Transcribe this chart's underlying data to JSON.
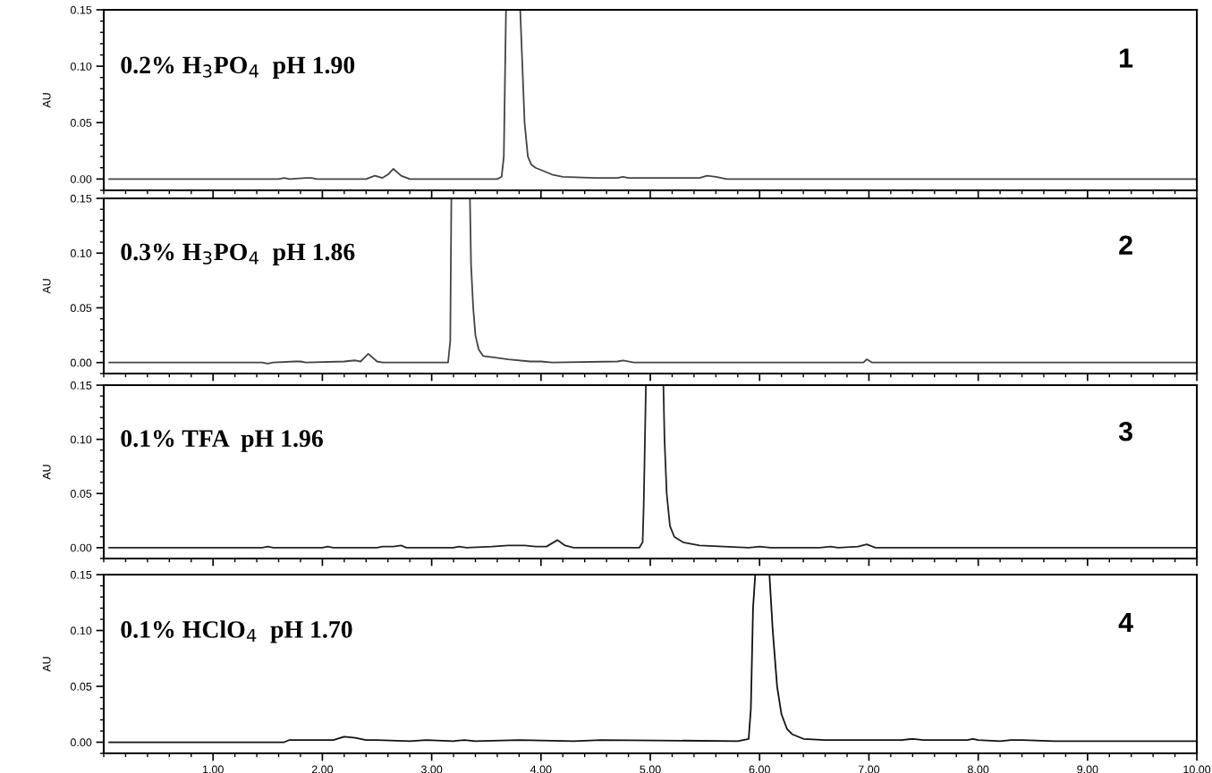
{
  "chart_data": [
    {
      "type": "line",
      "ylabel": "AU",
      "annotations": [
        "0.2% H$_{3}$PO$_{4}$  pH 1.90",
        "1"
      ],
      "xlim": [
        0,
        10
      ],
      "ylim": [
        -0.01,
        0.15
      ],
      "yticks": [
        {
          "value": 0,
          "label": "0.00"
        },
        {
          "value": 0.05,
          "label": "0.05"
        },
        {
          "value": 0.1,
          "label": "0.10"
        },
        {
          "value": 0.15,
          "label": "0.15"
        }
      ],
      "xticks": [
        {
          "value": 1,
          "label": null
        },
        {
          "value": 2,
          "label": null
        },
        {
          "value": 3,
          "label": null
        },
        {
          "value": 4,
          "label": null
        },
        {
          "value": 5,
          "label": null
        },
        {
          "value": 6,
          "label": null
        },
        {
          "value": 7,
          "label": null
        },
        {
          "value": 8,
          "label": null
        },
        {
          "value": 9,
          "label": null
        },
        {
          "value": 10,
          "label": null
        }
      ],
      "tick_labels": "y",
      "grid": false,
      "legend": false,
      "series": [
        {
          "color": "#444444",
          "x": [
            0.05,
            1.6,
            1.65,
            1.7,
            1.85,
            1.9,
            1.95,
            2.4,
            2.48,
            2.55,
            2.6,
            2.65,
            2.72,
            2.8,
            3.6,
            3.64,
            3.66,
            3.68,
            3.7,
            3.75,
            3.81,
            3.83,
            3.85,
            3.88,
            3.91,
            3.95,
            4.0,
            4.05,
            4.1,
            4.2,
            4.5,
            4.7,
            4.75,
            4.8,
            5.45,
            5.52,
            5.6,
            5.7,
            10
          ],
          "values": [
            0,
            0,
            0.001,
            0,
            0.001,
            0.001,
            0,
            0,
            0.003,
            0.001,
            0.004,
            0.009,
            0.003,
            0,
            0,
            0.002,
            0.02,
            0.15,
            0.15,
            null,
            0.15,
            0.1,
            0.05,
            0.02,
            0.013,
            0.01,
            0.008,
            0.006,
            0.004,
            0.002,
            0.001,
            0.001,
            0.002,
            0.001,
            0.001,
            0.003,
            0.002,
            0,
            0
          ]
        }
      ]
    },
    {
      "type": "line",
      "ylabel": "AU",
      "annotations": [
        "0.3% H$_{3}$PO$_{4}$  pH 1.86",
        "2"
      ],
      "xlim": [
        0,
        10
      ],
      "ylim": [
        -0.01,
        0.15
      ],
      "yticks": [
        {
          "value": 0,
          "label": "0.00"
        },
        {
          "value": 0.05,
          "label": "0.05"
        },
        {
          "value": 0.1,
          "label": "0.10"
        },
        {
          "value": 0.15,
          "label": "0.15"
        }
      ],
      "xticks": [
        {
          "value": 1,
          "label": null
        },
        {
          "value": 2,
          "label": null
        },
        {
          "value": 3,
          "label": null
        },
        {
          "value": 4,
          "label": null
        },
        {
          "value": 5,
          "label": null
        },
        {
          "value": 6,
          "label": null
        },
        {
          "value": 7,
          "label": null
        },
        {
          "value": 8,
          "label": null
        },
        {
          "value": 9,
          "label": null
        },
        {
          "value": 10,
          "label": null
        }
      ],
      "tick_labels": "y",
      "grid": false,
      "legend": false,
      "series": [
        {
          "color": "#444444",
          "x": [
            0.05,
            1.45,
            1.5,
            1.55,
            1.75,
            1.8,
            1.85,
            2.2,
            2.3,
            2.35,
            2.42,
            2.5,
            2.55,
            3.15,
            3.17,
            3.18,
            3.2,
            3.27,
            3.35,
            3.36,
            3.38,
            3.4,
            3.43,
            3.47,
            3.55,
            3.7,
            3.9,
            4.0,
            4.1,
            4.7,
            4.75,
            4.85,
            6.95,
            6.98,
            7.03,
            10
          ],
          "values": [
            0,
            0,
            -0.001,
            0,
            0.001,
            0.001,
            0,
            0.001,
            0.002,
            0.001,
            0.008,
            0.001,
            0,
            0,
            0.02,
            0.15,
            0.15,
            null,
            0.15,
            0.09,
            0.05,
            0.025,
            0.012,
            0.006,
            0.005,
            0.003,
            0.001,
            0.001,
            0,
            0.001,
            0.002,
            0,
            0,
            0.003,
            0,
            0
          ]
        }
      ]
    },
    {
      "type": "line",
      "ylabel": "AU",
      "annotations": [
        "0.1% TFA  pH 1.96",
        "3"
      ],
      "xlim": [
        0,
        10
      ],
      "ylim": [
        -0.01,
        0.15
      ],
      "yticks": [
        {
          "value": 0,
          "label": "0.00"
        },
        {
          "value": 0.05,
          "label": "0.05"
        },
        {
          "value": 0.1,
          "label": "0.10"
        },
        {
          "value": 0.15,
          "label": "0.15"
        }
      ],
      "xticks": [
        {
          "value": 1,
          "label": null
        },
        {
          "value": 2,
          "label": null
        },
        {
          "value": 3,
          "label": null
        },
        {
          "value": 4,
          "label": null
        },
        {
          "value": 5,
          "label": null
        },
        {
          "value": 6,
          "label": null
        },
        {
          "value": 7,
          "label": null
        },
        {
          "value": 8,
          "label": null
        },
        {
          "value": 9,
          "label": null
        },
        {
          "value": 10,
          "label": null
        }
      ],
      "tick_labels": "y",
      "grid": false,
      "legend": false,
      "series": [
        {
          "color": "#222222",
          "x": [
            0.05,
            1.45,
            1.5,
            1.55,
            2.0,
            2.05,
            2.1,
            2.5,
            2.55,
            2.65,
            2.72,
            2.77,
            3.2,
            3.25,
            3.32,
            3.55,
            3.7,
            3.85,
            3.95,
            4.05,
            4.15,
            4.22,
            4.3,
            4.9,
            4.93,
            4.94,
            4.96,
            5.04,
            5.12,
            5.13,
            5.15,
            5.18,
            5.22,
            5.3,
            5.45,
            5.9,
            6.0,
            6.1,
            6.55,
            6.65,
            6.72,
            6.9,
            6.98,
            7.06,
            10
          ],
          "values": [
            0,
            0,
            0.001,
            0,
            0,
            0.001,
            0,
            0,
            0.001,
            0.001,
            0.002,
            0,
            0,
            0.001,
            0,
            0.001,
            0.002,
            0.002,
            0.001,
            0.001,
            0.007,
            0.002,
            0,
            0,
            0.005,
            0.04,
            0.15,
            null,
            0.15,
            0.1,
            0.05,
            0.02,
            0.01,
            0.005,
            0.002,
            0,
            0.001,
            0,
            0,
            0.001,
            0,
            0.001,
            0.003,
            0,
            0
          ]
        }
      ]
    },
    {
      "type": "line",
      "ylabel": "AU",
      "annotations": [
        "0.1% HClO$_{4}$  pH 1.70",
        "4"
      ],
      "xlim": [
        0,
        10
      ],
      "ylim": [
        -0.01,
        0.15
      ],
      "yticks": [
        {
          "value": 0,
          "label": "0.00"
        },
        {
          "value": 0.05,
          "label": "0.05"
        },
        {
          "value": 0.1,
          "label": "0.10"
        },
        {
          "value": 0.15,
          "label": "0.15"
        }
      ],
      "xticks": [
        {
          "value": 1,
          "label": "1.00"
        },
        {
          "value": 2,
          "label": "2.00"
        },
        {
          "value": 3,
          "label": "3.00"
        },
        {
          "value": 4,
          "label": "4.00"
        },
        {
          "value": 5,
          "label": "5.00"
        },
        {
          "value": 6,
          "label": "6.00"
        },
        {
          "value": 7,
          "label": "7.00"
        },
        {
          "value": 8,
          "label": "8.00"
        },
        {
          "value": 9,
          "label": "9.00"
        },
        {
          "value": 10,
          "label": "10.00"
        }
      ],
      "grid": false,
      "legend": false,
      "series": [
        {
          "color": "#111111",
          "x": [
            0.05,
            1.65,
            1.7,
            2.1,
            2.2,
            2.3,
            2.4,
            2.5,
            2.8,
            2.95,
            3.2,
            3.3,
            3.4,
            3.8,
            4.3,
            4.55,
            5.8,
            5.9,
            5.92,
            5.94,
            5.96,
            6.03,
            6.09,
            6.12,
            6.16,
            6.2,
            6.25,
            6.3,
            6.4,
            6.6,
            7.3,
            7.4,
            7.5,
            7.9,
            7.95,
            8.0,
            8.2,
            8.3,
            8.4,
            8.7,
            10
          ],
          "values": [
            0,
            0,
            0.002,
            0.002,
            0.005,
            0.004,
            0.002,
            0.002,
            0.001,
            0.002,
            0.001,
            0.002,
            0.001,
            0.002,
            0.001,
            0.002,
            0.001,
            0.003,
            0.03,
            0.12,
            0.15,
            null,
            0.15,
            0.1,
            0.05,
            0.025,
            0.012,
            0.007,
            0.003,
            0.002,
            0.002,
            0.003,
            0.002,
            0.002,
            0.003,
            0.002,
            0.001,
            0.002,
            0.002,
            0.001,
            0.001
          ]
        }
      ]
    }
  ]
}
